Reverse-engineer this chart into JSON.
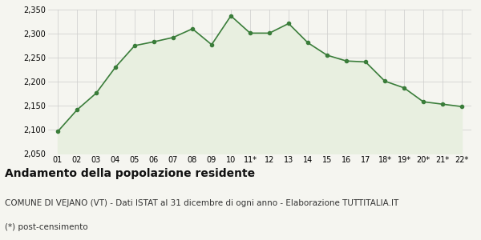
{
  "x_labels": [
    "01",
    "02",
    "03",
    "04",
    "05",
    "06",
    "07",
    "08",
    "09",
    "10",
    "11*",
    "12",
    "13",
    "14",
    "15",
    "16",
    "17",
    "18*",
    "19*",
    "20*",
    "21*",
    "22*"
  ],
  "y_values": [
    2096,
    2141,
    2176,
    2230,
    2275,
    2283,
    2292,
    2310,
    2277,
    2337,
    2301,
    2301,
    2321,
    2281,
    2255,
    2243,
    2241,
    2201,
    2187,
    2158,
    2153,
    2148
  ],
  "ylim": [
    2050,
    2350
  ],
  "yticks": [
    2050,
    2100,
    2150,
    2200,
    2250,
    2300,
    2350
  ],
  "line_color": "#3a7d3a",
  "fill_color": "#e8efe0",
  "marker_color": "#3a7d3a",
  "bg_color": "#f5f5f0",
  "grid_color": "#cccccc",
  "title": "Andamento della popolazione residente",
  "subtitle": "COMUNE DI VEJANO (VT) - Dati ISTAT al 31 dicembre di ogni anno - Elaborazione TUTTITALIA.IT",
  "footnote": "(*) post-censimento",
  "title_fontsize": 10,
  "subtitle_fontsize": 7.5,
  "footnote_fontsize": 7.5
}
